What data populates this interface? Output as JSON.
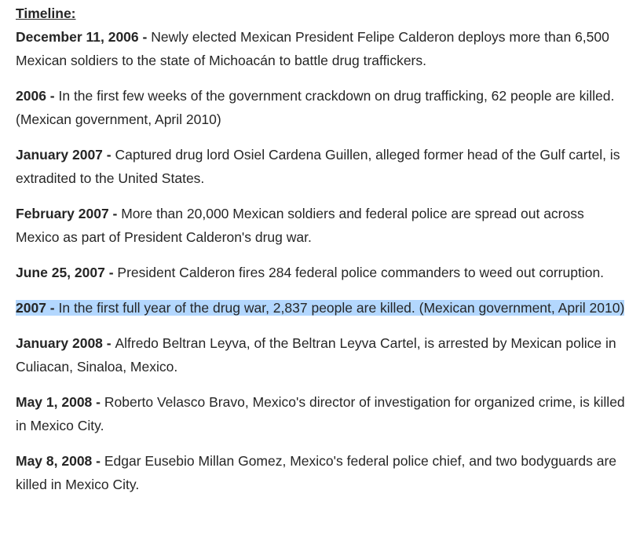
{
  "timeline": {
    "heading": "Timeline:",
    "entries": [
      {
        "date": "December 11, 2006 - ",
        "text": "Newly elected Mexican President Felipe Calderon deploys more than 6,500 Mexican soldiers to the state of Michoacán to battle drug traffickers.",
        "selected": false
      },
      {
        "date": "2006 - ",
        "text": "In the first few weeks of the government crackdown on drug trafficking, 62 people are killed. (Mexican government, April 2010)",
        "selected": false
      },
      {
        "date": "January 2007 - ",
        "text": "Captured drug lord Osiel Cardena Guillen, alleged former head of the Gulf cartel, is extradited to the United States.",
        "selected": false
      },
      {
        "date": "February 2007 - ",
        "text": "More than 20,000 Mexican soldiers and federal police are spread out across Mexico as part of President Calderon's drug war.",
        "selected": false
      },
      {
        "date": "June 25, 2007 - ",
        "text": "President Calderon fires 284 federal police commanders to weed out corruption.",
        "selected": false
      },
      {
        "date": "2007 - ",
        "text": "In the first full year of the drug war, 2,837 people are killed. (Mexican government, April 2010)",
        "selected": true
      },
      {
        "date": "January 2008 - ",
        "text": "Alfredo Beltran Leyva, of the Beltran Leyva Cartel, is arrested by Mexican police in Culiacan, Sinaloa, Mexico.",
        "selected": false
      },
      {
        "date": "May 1, 2008 - ",
        "text": "Roberto Velasco Bravo, Mexico's director of investigation for organized crime, is killed in Mexico City.",
        "selected": false
      },
      {
        "date": "May 8, 2008 - ",
        "text": "Edgar Eusebio Millan Gomez, Mexico's federal police chief, and two bodyguards are killed in Mexico City.",
        "selected": false
      }
    ]
  },
  "colors": {
    "text": "#262626",
    "selection": "#b3d7fe",
    "background": "#ffffff"
  }
}
